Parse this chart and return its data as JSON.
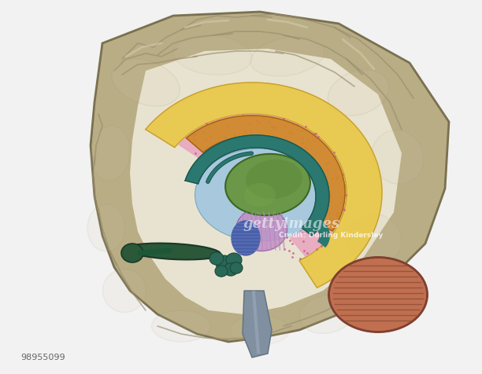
{
  "bg": "#f2f2f2",
  "watermark": "gettyimages",
  "credit": "Credit: Dorling Kindersley",
  "id": "98955099",
  "colors": {
    "cortex_fill": "#b8ad85",
    "cortex_edge": "#7a7050",
    "cortex_light": "#d4caa8",
    "white_matter": "#e8e3d0",
    "yellow_corpus": "#e8c84a",
    "yellow_edge": "#c8a030",
    "pink_limbic": "#e8a8c0",
    "pink_dot": "#c86090",
    "blue_ventricle": "#a8c8de",
    "thalamus_green": "#6a9848",
    "thalamus_dark": "#3a6820",
    "teal_fornix": "#2a7870",
    "teal_dark": "#1a5850",
    "purple_hypo": "#c090c0",
    "purple_stripe": "#a870a8",
    "blue_amyg": "#4a60a8",
    "teal_amyg": "#2a6858",
    "dark_green_olf": "#2a5838",
    "orange_parahip": "#d08828",
    "orange_edge": "#a86010",
    "brainstem_gray": "#8090a0",
    "cerebellum": "#c07050",
    "cerebellum_line": "#905038",
    "gyrus_shadow": "#9a9070"
  }
}
